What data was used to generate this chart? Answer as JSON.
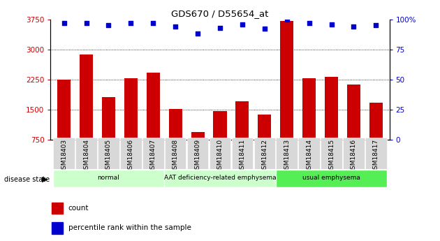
{
  "title": "GDS670 / D55654_at",
  "categories": [
    "GSM18403",
    "GSM18404",
    "GSM18405",
    "GSM18406",
    "GSM18407",
    "GSM18408",
    "GSM18409",
    "GSM18410",
    "GSM18411",
    "GSM18412",
    "GSM18413",
    "GSM18414",
    "GSM18415",
    "GSM18416",
    "GSM18417"
  ],
  "counts": [
    2250,
    2870,
    1820,
    2280,
    2420,
    1520,
    950,
    1470,
    1700,
    1380,
    3700,
    2280,
    2310,
    2130,
    1680
  ],
  "percentiles": [
    97,
    97,
    95,
    97,
    97,
    94,
    88,
    93,
    96,
    92,
    100,
    97,
    96,
    94,
    95
  ],
  "ylim_left": [
    750,
    3750
  ],
  "ylim_right": [
    0,
    100
  ],
  "yticks_left": [
    750,
    1500,
    2250,
    3000,
    3750
  ],
  "yticks_right": [
    0,
    25,
    50,
    75,
    100
  ],
  "bar_color": "#cc0000",
  "dot_color": "#0000cc",
  "group_defs": [
    {
      "label": "normal",
      "start": 0,
      "end": 4,
      "color": "#ccffcc"
    },
    {
      "label": "AAT deficiency-related emphysema",
      "start": 5,
      "end": 9,
      "color": "#ccffcc"
    },
    {
      "label": "usual emphysema",
      "start": 10,
      "end": 14,
      "color": "#55ee55"
    }
  ],
  "disease_label": "disease state",
  "legend_count": "count",
  "legend_pct": "percentile rank within the sample"
}
